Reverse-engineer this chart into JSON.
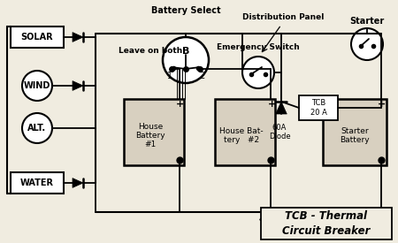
{
  "bg_color": "#f0ece0",
  "annotations": {
    "battery_select": "Battery Select",
    "distribution_panel": "Distribution Panel",
    "leave_on_both": "Leave on both",
    "emergency_switch": "Emergency Switch",
    "starter_label": "Starter",
    "tcb_label": "TCB - Thermal\nCircuit Breaker",
    "tcb_box": "TCB\n20 A",
    "diode_label": "60A\nDiode",
    "solar": "SOLAR",
    "wind": "WIND",
    "alt": "ALT.",
    "water": "WATER",
    "house_bat1": "House\nBattery\n#1",
    "house_bat2": "House Bat-\ntery   #2",
    "starter_bat": "Starter\nBattery"
  }
}
